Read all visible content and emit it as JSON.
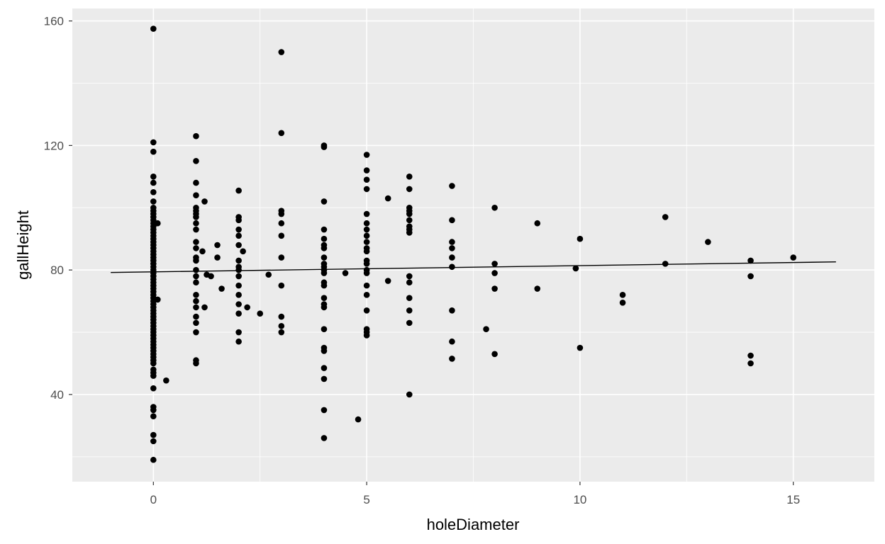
{
  "chart_data": {
    "type": "scatter",
    "title": "",
    "xlabel": "holeDiameter",
    "ylabel": "gallHeight",
    "xlim": [
      -1.9,
      16.9
    ],
    "ylim": [
      12,
      164
    ],
    "x_ticks": [
      0,
      5,
      10,
      15
    ],
    "x_tick_labels": [
      "0",
      "5",
      "10",
      "15"
    ],
    "y_ticks": [
      40,
      80,
      120,
      160
    ],
    "y_tick_labels": [
      "40",
      "80",
      "120",
      "160"
    ],
    "x_minor": [
      -2.5,
      2.5,
      7.5,
      12.5
    ],
    "y_minor": [
      20,
      60,
      100,
      140
    ],
    "grid": true,
    "colors": {
      "panel": "#ebebeb",
      "grid": "#ffffff",
      "point": "#000000",
      "line": "#000000"
    },
    "series": [
      {
        "points": [
          [
            0,
            157.5
          ],
          [
            0,
            121
          ],
          [
            0,
            118
          ],
          [
            0,
            110
          ],
          [
            0,
            108
          ],
          [
            0,
            105
          ],
          [
            0,
            102
          ],
          [
            0,
            100
          ],
          [
            0,
            99
          ],
          [
            0,
            98
          ],
          [
            0,
            97
          ],
          [
            0,
            96
          ],
          [
            0,
            95
          ],
          [
            0,
            94
          ],
          [
            0,
            93
          ],
          [
            0,
            92
          ],
          [
            0,
            91
          ],
          [
            0,
            90
          ],
          [
            0,
            89
          ],
          [
            0,
            88
          ],
          [
            0,
            87
          ],
          [
            0,
            86
          ],
          [
            0,
            85
          ],
          [
            0,
            84
          ],
          [
            0,
            83
          ],
          [
            0,
            82
          ],
          [
            0,
            81
          ],
          [
            0,
            80
          ],
          [
            0,
            79
          ],
          [
            0,
            78
          ],
          [
            0,
            77
          ],
          [
            0,
            76
          ],
          [
            0,
            75
          ],
          [
            0,
            74
          ],
          [
            0,
            73
          ],
          [
            0,
            72
          ],
          [
            0,
            71
          ],
          [
            0,
            70
          ],
          [
            0,
            69
          ],
          [
            0,
            68
          ],
          [
            0,
            67
          ],
          [
            0,
            66
          ],
          [
            0,
            65
          ],
          [
            0,
            64
          ],
          [
            0,
            63
          ],
          [
            0,
            62
          ],
          [
            0,
            61
          ],
          [
            0,
            60
          ],
          [
            0,
            59
          ],
          [
            0,
            58
          ],
          [
            0,
            57
          ],
          [
            0,
            56
          ],
          [
            0,
            55
          ],
          [
            0,
            54
          ],
          [
            0,
            53
          ],
          [
            0,
            52
          ],
          [
            0,
            51
          ],
          [
            0,
            50
          ],
          [
            0,
            48
          ],
          [
            0,
            47
          ],
          [
            0,
            46
          ],
          [
            0,
            42
          ],
          [
            0,
            36
          ],
          [
            0,
            35
          ],
          [
            0,
            33
          ],
          [
            0,
            27
          ],
          [
            0,
            25
          ],
          [
            0,
            19
          ],
          [
            0.1,
            95
          ],
          [
            0.1,
            70.5
          ],
          [
            0.3,
            44.5
          ],
          [
            1,
            123
          ],
          [
            1,
            115
          ],
          [
            1,
            108
          ],
          [
            1,
            104
          ],
          [
            1,
            100
          ],
          [
            1,
            99
          ],
          [
            1,
            98
          ],
          [
            1,
            97
          ],
          [
            1,
            95
          ],
          [
            1,
            93
          ],
          [
            1,
            89
          ],
          [
            1,
            87
          ],
          [
            1,
            84
          ],
          [
            1,
            83
          ],
          [
            1,
            80
          ],
          [
            1,
            78
          ],
          [
            1,
            76
          ],
          [
            1,
            72
          ],
          [
            1,
            70
          ],
          [
            1,
            68
          ],
          [
            1,
            65
          ],
          [
            1,
            63
          ],
          [
            1,
            60
          ],
          [
            1,
            51
          ],
          [
            1,
            50
          ],
          [
            1.15,
            86
          ],
          [
            1.2,
            102
          ],
          [
            1.2,
            68
          ],
          [
            1.25,
            78.5
          ],
          [
            1.35,
            78
          ],
          [
            1.5,
            88
          ],
          [
            1.5,
            84
          ],
          [
            1.6,
            74
          ],
          [
            2,
            105.5
          ],
          [
            2,
            97
          ],
          [
            2,
            96
          ],
          [
            2,
            93
          ],
          [
            2,
            91
          ],
          [
            2,
            88
          ],
          [
            2,
            83
          ],
          [
            2,
            81
          ],
          [
            2,
            80
          ],
          [
            2,
            78
          ],
          [
            2,
            75
          ],
          [
            2,
            72
          ],
          [
            2,
            69
          ],
          [
            2,
            66
          ],
          [
            2,
            60
          ],
          [
            2,
            57
          ],
          [
            2.1,
            86
          ],
          [
            2.2,
            68
          ],
          [
            2.5,
            66
          ],
          [
            2.7,
            78.5
          ],
          [
            3,
            150
          ],
          [
            3,
            124
          ],
          [
            3,
            99
          ],
          [
            3,
            98
          ],
          [
            3,
            95
          ],
          [
            3,
            91
          ],
          [
            3,
            84
          ],
          [
            3,
            75
          ],
          [
            3,
            65
          ],
          [
            3,
            62
          ],
          [
            3,
            60
          ],
          [
            4,
            120
          ],
          [
            4,
            119.5
          ],
          [
            4,
            102
          ],
          [
            4,
            93
          ],
          [
            4,
            90
          ],
          [
            4,
            88
          ],
          [
            4,
            87
          ],
          [
            4,
            84
          ],
          [
            4,
            82
          ],
          [
            4,
            81
          ],
          [
            4,
            80
          ],
          [
            4,
            79
          ],
          [
            4,
            76
          ],
          [
            4,
            75
          ],
          [
            4,
            71
          ],
          [
            4,
            69
          ],
          [
            4,
            68
          ],
          [
            4,
            61
          ],
          [
            4,
            55
          ],
          [
            4,
            54
          ],
          [
            4,
            48.5
          ],
          [
            4,
            45
          ],
          [
            4,
            35
          ],
          [
            4,
            26
          ],
          [
            4.5,
            79
          ],
          [
            4.8,
            32
          ],
          [
            5,
            117
          ],
          [
            5,
            112
          ],
          [
            5,
            109
          ],
          [
            5,
            106
          ],
          [
            5,
            98
          ],
          [
            5,
            95
          ],
          [
            5,
            93
          ],
          [
            5,
            91
          ],
          [
            5,
            89
          ],
          [
            5,
            87
          ],
          [
            5,
            86
          ],
          [
            5,
            83
          ],
          [
            5,
            82
          ],
          [
            5,
            80
          ],
          [
            5,
            79
          ],
          [
            5,
            75
          ],
          [
            5,
            72
          ],
          [
            5,
            67
          ],
          [
            5,
            61
          ],
          [
            5,
            60
          ],
          [
            5,
            59
          ],
          [
            5.5,
            103
          ],
          [
            5.5,
            76.5
          ],
          [
            6,
            110
          ],
          [
            6,
            106
          ],
          [
            6,
            100
          ],
          [
            6,
            99
          ],
          [
            6,
            98
          ],
          [
            6,
            96
          ],
          [
            6,
            94
          ],
          [
            6,
            93
          ],
          [
            6,
            92
          ],
          [
            6,
            78
          ],
          [
            6,
            76
          ],
          [
            6,
            71
          ],
          [
            6,
            67
          ],
          [
            6,
            63
          ],
          [
            6,
            40
          ],
          [
            7,
            107
          ],
          [
            7,
            96
          ],
          [
            7,
            89
          ],
          [
            7,
            87
          ],
          [
            7,
            84
          ],
          [
            7,
            81
          ],
          [
            7,
            67
          ],
          [
            7,
            57
          ],
          [
            7,
            51.5
          ],
          [
            7.8,
            61
          ],
          [
            8,
            100
          ],
          [
            8,
            82
          ],
          [
            8,
            79
          ],
          [
            8,
            74
          ],
          [
            8,
            53
          ],
          [
            9,
            95
          ],
          [
            9,
            74
          ],
          [
            9.9,
            80.5
          ],
          [
            10,
            90
          ],
          [
            10,
            55
          ],
          [
            11,
            72
          ],
          [
            11,
            69.5
          ],
          [
            12,
            97
          ],
          [
            12,
            82
          ],
          [
            13,
            89
          ],
          [
            14,
            83
          ],
          [
            14,
            78
          ],
          [
            14,
            52.5
          ],
          [
            14,
            50
          ],
          [
            15,
            84
          ]
        ]
      }
    ],
    "trend_line": {
      "x": [
        -1,
        16
      ],
      "y": [
        79.2,
        82.6
      ]
    }
  }
}
